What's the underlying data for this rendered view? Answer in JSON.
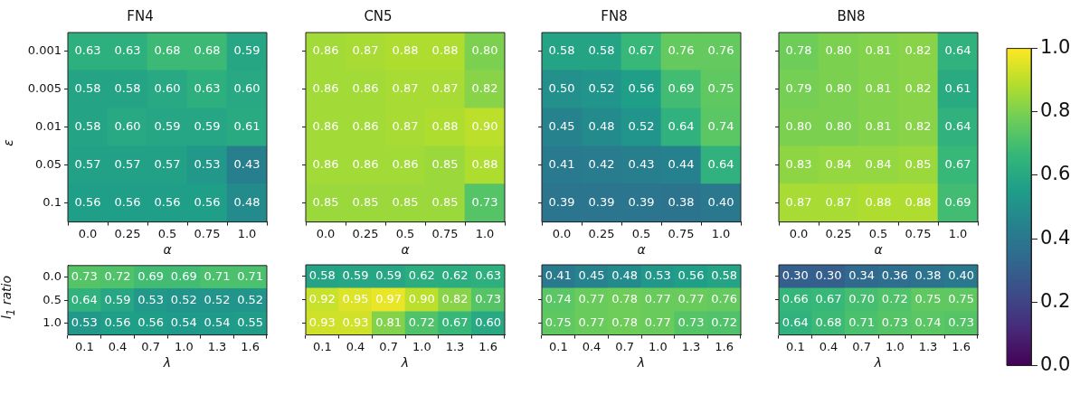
{
  "chart_data": [
    {
      "type": "heatmap",
      "title": "FN4",
      "xlabel": "α",
      "ylabel": "ε",
      "categories": [
        "0.0",
        "0.25",
        "0.5",
        "0.75",
        "1.0"
      ],
      "y_categories": [
        "0.001",
        "0.005",
        "0.01",
        "0.05",
        "0.1"
      ],
      "cells": [
        [
          0.63,
          0.63,
          0.68,
          0.68,
          0.59
        ],
        [
          0.58,
          0.58,
          0.6,
          0.63,
          0.6
        ],
        [
          0.58,
          0.6,
          0.59,
          0.59,
          0.61
        ],
        [
          0.57,
          0.57,
          0.57,
          0.53,
          0.43
        ],
        [
          0.56,
          0.56,
          0.56,
          0.56,
          0.48
        ]
      ],
      "cell_labels": [
        [
          "0.63",
          "0.63",
          "0.68",
          "0.68",
          "0.59"
        ],
        [
          "0.58",
          "0.58",
          "0.60",
          "0.63",
          "0.60"
        ],
        [
          "0.58",
          "0.60",
          "0.59",
          "0.59",
          "0.61"
        ],
        [
          "0.57",
          "0.57",
          "0.57",
          "0.53",
          "0.43"
        ],
        [
          "0.56",
          "0.56",
          "0.56",
          "0.56",
          "0.48"
        ]
      ]
    },
    {
      "type": "heatmap",
      "title": "CN5",
      "xlabel": "α",
      "categories": [
        "0.0",
        "0.25",
        "0.5",
        "0.75",
        "1.0"
      ],
      "y_categories": [
        "0.001",
        "0.005",
        "0.01",
        "0.05",
        "0.1"
      ],
      "cells": [
        [
          0.86,
          0.87,
          0.88,
          0.88,
          0.8
        ],
        [
          0.86,
          0.86,
          0.87,
          0.87,
          0.82
        ],
        [
          0.86,
          0.86,
          0.87,
          0.88,
          0.9
        ],
        [
          0.86,
          0.86,
          0.86,
          0.85,
          0.88
        ],
        [
          0.85,
          0.85,
          0.85,
          0.85,
          0.73
        ]
      ],
      "cell_labels": [
        [
          "0.86",
          "0.87",
          "0.88",
          "0.88",
          "0.80"
        ],
        [
          "0.86",
          "0.86",
          "0.87",
          "0.87",
          "0.82"
        ],
        [
          "0.86",
          "0.86",
          "0.87",
          "0.88",
          "0.90"
        ],
        [
          "0.86",
          "0.86",
          "0.86",
          "0.85",
          "0.88"
        ],
        [
          "0.85",
          "0.85",
          "0.85",
          "0.85",
          "0.73"
        ]
      ],
      "tick_labels": "x"
    },
    {
      "type": "heatmap",
      "title": "FN8",
      "xlabel": "α",
      "categories": [
        "0.0",
        "0.25",
        "0.5",
        "0.75",
        "1.0"
      ],
      "y_categories": [
        "0.001",
        "0.005",
        "0.01",
        "0.05",
        "0.1"
      ],
      "cells": [
        [
          0.58,
          0.58,
          0.67,
          0.76,
          0.76
        ],
        [
          0.5,
          0.52,
          0.56,
          0.69,
          0.75
        ],
        [
          0.45,
          0.48,
          0.52,
          0.64,
          0.74
        ],
        [
          0.41,
          0.42,
          0.43,
          0.44,
          0.64
        ],
        [
          0.39,
          0.39,
          0.39,
          0.38,
          0.4
        ]
      ],
      "cell_labels": [
        [
          "0.58",
          "0.58",
          "0.67",
          "0.76",
          "0.76"
        ],
        [
          "0.50",
          "0.52",
          "0.56",
          "0.69",
          "0.75"
        ],
        [
          "0.45",
          "0.48",
          "0.52",
          "0.64",
          "0.74"
        ],
        [
          "0.41",
          "0.42",
          "0.43",
          "0.44",
          "0.64"
        ],
        [
          "0.39",
          "0.39",
          "0.39",
          "0.38",
          "0.40"
        ]
      ],
      "tick_labels": "x"
    },
    {
      "type": "heatmap",
      "title": "BN8",
      "xlabel": "α",
      "categories": [
        "0.0",
        "0.25",
        "0.5",
        "0.75",
        "1.0"
      ],
      "y_categories": [
        "0.001",
        "0.005",
        "0.01",
        "0.05",
        "0.1"
      ],
      "cells": [
        [
          0.78,
          0.8,
          0.81,
          0.82,
          0.64
        ],
        [
          0.79,
          0.8,
          0.81,
          0.82,
          0.61
        ],
        [
          0.8,
          0.8,
          0.81,
          0.82,
          0.64
        ],
        [
          0.83,
          0.84,
          0.84,
          0.85,
          0.67
        ],
        [
          0.87,
          0.87,
          0.88,
          0.88,
          0.69
        ]
      ],
      "cell_labels": [
        [
          "0.78",
          "0.80",
          "0.81",
          "0.82",
          "0.64"
        ],
        [
          "0.79",
          "0.80",
          "0.81",
          "0.82",
          "0.61"
        ],
        [
          "0.80",
          "0.80",
          "0.81",
          "0.82",
          "0.64"
        ],
        [
          "0.83",
          "0.84",
          "0.84",
          "0.85",
          "0.67"
        ],
        [
          "0.87",
          "0.87",
          "0.88",
          "0.88",
          "0.69"
        ]
      ],
      "clim": [
        0,
        1
      ],
      "cticks": [
        {
          "value": 0,
          "label": "0.0"
        },
        0.2,
        0.4,
        0.6,
        0.8,
        {
          "value": 1,
          "label": "1.0"
        }
      ],
      "tick_labels": "x"
    },
    {
      "type": "heatmap",
      "xlabel": "λ",
      "ylabel": "l$_{1}$ ratio",
      "categories": [
        "0.1",
        "0.4",
        "0.7",
        "1.0",
        "1.3",
        "1.6"
      ],
      "y_categories": [
        "0.0",
        "0.5",
        "1.0"
      ],
      "cells": [
        [
          0.73,
          0.72,
          0.69,
          0.69,
          0.71,
          0.71
        ],
        [
          0.64,
          0.59,
          0.53,
          0.52,
          0.52,
          0.52
        ],
        [
          0.53,
          0.56,
          0.56,
          0.54,
          0.54,
          0.55
        ]
      ],
      "cell_labels": [
        [
          "0.73",
          "0.72",
          "0.69",
          "0.69",
          "0.71",
          "0.71"
        ],
        [
          "0.64",
          "0.59",
          "0.53",
          "0.52",
          "0.52",
          "0.52"
        ],
        [
          "0.53",
          "0.56",
          "0.56",
          "0.54",
          "0.54",
          "0.55"
        ]
      ]
    },
    {
      "type": "heatmap",
      "xlabel": "λ",
      "categories": [
        "0.1",
        "0.4",
        "0.7",
        "1.0",
        "1.3",
        "1.6"
      ],
      "y_categories": [
        "0.0",
        "0.5",
        "1.0"
      ],
      "cells": [
        [
          0.58,
          0.59,
          0.59,
          0.62,
          0.62,
          0.63
        ],
        [
          0.92,
          0.95,
          0.97,
          0.9,
          0.82,
          0.73
        ],
        [
          0.93,
          0.93,
          0.81,
          0.72,
          0.67,
          0.6
        ]
      ],
      "cell_labels": [
        [
          "0.58",
          "0.59",
          "0.59",
          "0.62",
          "0.62",
          "0.63"
        ],
        [
          "0.92",
          "0.95",
          "0.97",
          "0.90",
          "0.82",
          "0.73"
        ],
        [
          "0.93",
          "0.93",
          "0.81",
          "0.72",
          "0.67",
          "0.60"
        ]
      ],
      "tick_labels": "x"
    },
    {
      "type": "heatmap",
      "xlabel": "λ",
      "categories": [
        "0.1",
        "0.4",
        "0.7",
        "1.0",
        "1.3",
        "1.6"
      ],
      "y_categories": [
        "0.0",
        "0.5",
        "1.0"
      ],
      "cells": [
        [
          0.41,
          0.45,
          0.48,
          0.53,
          0.56,
          0.58
        ],
        [
          0.74,
          0.77,
          0.78,
          0.77,
          0.77,
          0.76
        ],
        [
          0.75,
          0.77,
          0.78,
          0.77,
          0.73,
          0.72
        ]
      ],
      "cell_labels": [
        [
          "0.41",
          "0.45",
          "0.48",
          "0.53",
          "0.56",
          "0.58"
        ],
        [
          "0.74",
          "0.77",
          "0.78",
          "0.77",
          "0.77",
          "0.76"
        ],
        [
          "0.75",
          "0.77",
          "0.78",
          "0.77",
          "0.73",
          "0.72"
        ]
      ],
      "tick_labels": "x"
    },
    {
      "type": "heatmap",
      "xlabel": "λ",
      "categories": [
        "0.1",
        "0.4",
        "0.7",
        "1.0",
        "1.3",
        "1.6"
      ],
      "y_categories": [
        "0.0",
        "0.5",
        "1.0"
      ],
      "cells": [
        [
          0.3,
          0.3,
          0.34,
          0.36,
          0.38,
          0.4
        ],
        [
          0.66,
          0.67,
          0.7,
          0.72,
          0.75,
          0.75
        ],
        [
          0.64,
          0.68,
          0.71,
          0.73,
          0.74,
          0.73
        ]
      ],
      "cell_labels": [
        [
          "0.30",
          "0.30",
          "0.34",
          "0.36",
          "0.38",
          "0.40"
        ],
        [
          "0.66",
          "0.67",
          "0.70",
          "0.72",
          "0.75",
          "0.75"
        ],
        [
          "0.64",
          "0.68",
          "0.71",
          "0.73",
          "0.74",
          "0.73"
        ]
      ],
      "tick_labels": "x"
    }
  ]
}
